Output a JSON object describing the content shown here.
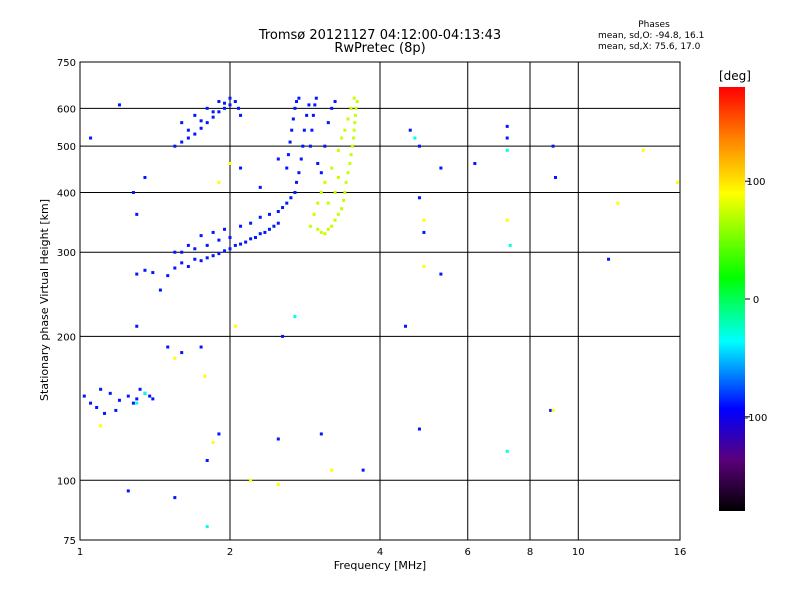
{
  "chart_data": {
    "type": "scatter",
    "title": "Tromsø 20121127 04:12:00-04:13:43",
    "subtitle": "RwPretec (8p)",
    "xlabel": "Frequency [MHz]",
    "ylabel": "Stationary phase Virtual Height [km]",
    "x_scale": "log",
    "y_scale": "log",
    "xlim": [
      1,
      16
    ],
    "ylim": [
      75,
      750
    ],
    "x_ticks": [
      1,
      2,
      4,
      6,
      8,
      10,
      16
    ],
    "x_tick_labels": [
      "1",
      "2",
      "4",
      "6",
      "8",
      "10",
      "16"
    ],
    "y_ticks": [
      75,
      100,
      200,
      300,
      400,
      500,
      600,
      750
    ],
    "y_tick_labels": [
      "75",
      "100",
      "200",
      "300",
      "400",
      "500",
      "600",
      "750"
    ],
    "grid": true,
    "stats": {
      "title": "Phases",
      "line1": "mean, sd,O: -94.8, 16.1",
      "line2": "mean, sd,X:  75.6, 17.0"
    },
    "colorbar": {
      "label": "[deg]",
      "range": [
        -180,
        180
      ],
      "ticks": [
        100,
        0,
        -100
      ],
      "tick_labels": [
        "100",
        "0",
        "-100"
      ],
      "colormap": "rainbow-black-blue-cyan-green-yellow-red"
    },
    "traces": [
      {
        "phase": -95,
        "points": [
          [
            1.02,
            150
          ],
          [
            1.05,
            145
          ],
          [
            1.08,
            142
          ],
          [
            1.1,
            155
          ],
          [
            1.15,
            152
          ],
          [
            1.2,
            147
          ],
          [
            1.25,
            150
          ],
          [
            1.3,
            148
          ],
          [
            1.35,
            152
          ],
          [
            1.12,
            138
          ],
          [
            1.18,
            140
          ],
          [
            1.28,
            145
          ],
          [
            1.32,
            155
          ],
          [
            1.38,
            150
          ],
          [
            1.4,
            148
          ]
        ]
      },
      {
        "phase": -95,
        "points": [
          [
            1.3,
            270
          ],
          [
            1.35,
            275
          ],
          [
            1.4,
            272
          ],
          [
            1.5,
            268
          ],
          [
            1.55,
            278
          ],
          [
            1.6,
            285
          ],
          [
            1.65,
            280
          ],
          [
            1.7,
            290
          ],
          [
            1.75,
            288
          ],
          [
            1.8,
            292
          ],
          [
            1.85,
            295
          ],
          [
            1.9,
            298
          ],
          [
            1.95,
            302
          ],
          [
            2.0,
            305
          ],
          [
            2.05,
            310
          ],
          [
            2.1,
            312
          ],
          [
            2.15,
            315
          ],
          [
            2.2,
            320
          ],
          [
            2.25,
            322
          ],
          [
            2.3,
            328
          ],
          [
            2.35,
            330
          ],
          [
            2.4,
            335
          ],
          [
            2.45,
            340
          ],
          [
            2.5,
            345
          ],
          [
            1.6,
            300
          ],
          [
            1.7,
            305
          ],
          [
            1.8,
            310
          ],
          [
            1.9,
            318
          ],
          [
            2.0,
            322
          ],
          [
            1.55,
            300
          ],
          [
            1.65,
            310
          ],
          [
            1.75,
            325
          ],
          [
            1.85,
            330
          ],
          [
            1.95,
            335
          ],
          [
            2.1,
            340
          ],
          [
            2.2,
            345
          ],
          [
            2.3,
            355
          ],
          [
            2.4,
            360
          ],
          [
            2.5,
            365
          ],
          [
            2.55,
            372
          ],
          [
            2.6,
            380
          ],
          [
            2.65,
            390
          ],
          [
            2.7,
            400
          ],
          [
            2.72,
            420
          ],
          [
            2.75,
            440
          ],
          [
            2.78,
            470
          ],
          [
            2.8,
            500
          ],
          [
            2.82,
            540
          ],
          [
            2.85,
            580
          ],
          [
            2.88,
            610
          ]
        ]
      },
      {
        "phase": -95,
        "points": [
          [
            1.55,
            500
          ],
          [
            1.6,
            510
          ],
          [
            1.65,
            520
          ],
          [
            1.7,
            530
          ],
          [
            1.75,
            545
          ],
          [
            1.8,
            560
          ],
          [
            1.85,
            575
          ],
          [
            1.9,
            590
          ],
          [
            1.95,
            600
          ],
          [
            2.0,
            610
          ],
          [
            2.05,
            620
          ],
          [
            2.08,
            600
          ],
          [
            2.1,
            580
          ],
          [
            1.6,
            560
          ],
          [
            1.7,
            580
          ],
          [
            1.8,
            600
          ],
          [
            1.9,
            620
          ],
          [
            2.0,
            630
          ],
          [
            1.65,
            540
          ],
          [
            1.75,
            565
          ],
          [
            1.85,
            590
          ],
          [
            1.95,
            615
          ]
        ]
      },
      {
        "phase": -95,
        "points": [
          [
            2.6,
            450
          ],
          [
            2.62,
            480
          ],
          [
            2.64,
            510
          ],
          [
            2.66,
            540
          ],
          [
            2.68,
            570
          ],
          [
            2.7,
            600
          ],
          [
            2.72,
            620
          ],
          [
            2.75,
            630
          ],
          [
            2.9,
            500
          ],
          [
            2.92,
            540
          ],
          [
            2.94,
            580
          ],
          [
            2.96,
            610
          ],
          [
            2.98,
            630
          ],
          [
            3.0,
            460
          ],
          [
            3.05,
            440
          ],
          [
            3.1,
            500
          ],
          [
            3.15,
            560
          ],
          [
            3.2,
            600
          ],
          [
            3.25,
            620
          ]
        ]
      },
      {
        "phase": 70,
        "points": [
          [
            2.9,
            340
          ],
          [
            3.0,
            335
          ],
          [
            3.05,
            330
          ],
          [
            3.1,
            328
          ],
          [
            3.15,
            335
          ],
          [
            3.2,
            340
          ],
          [
            3.25,
            350
          ],
          [
            3.3,
            360
          ],
          [
            3.35,
            370
          ],
          [
            3.38,
            385
          ],
          [
            3.4,
            400
          ],
          [
            3.42,
            420
          ],
          [
            3.45,
            440
          ],
          [
            3.48,
            460
          ],
          [
            3.5,
            480
          ],
          [
            3.52,
            500
          ],
          [
            3.54,
            520
          ],
          [
            3.55,
            540
          ],
          [
            3.56,
            560
          ],
          [
            3.57,
            580
          ],
          [
            3.58,
            600
          ],
          [
            3.6,
            620
          ],
          [
            3.55,
            630
          ],
          [
            3.5,
            600
          ],
          [
            3.45,
            570
          ],
          [
            3.4,
            540
          ],
          [
            3.35,
            520
          ],
          [
            3.3,
            490
          ],
          [
            3.2,
            450
          ],
          [
            3.1,
            420
          ],
          [
            3.05,
            400
          ],
          [
            3.0,
            380
          ],
          [
            2.95,
            360
          ],
          [
            3.15,
            380
          ],
          [
            3.25,
            400
          ],
          [
            3.3,
            430
          ]
        ]
      },
      {
        "phase": -95,
        "points": [
          [
            1.05,
            520
          ],
          [
            1.2,
            610
          ],
          [
            1.28,
            400
          ],
          [
            1.3,
            360
          ],
          [
            1.35,
            430
          ],
          [
            1.45,
            250
          ],
          [
            1.5,
            190
          ],
          [
            1.6,
            185
          ],
          [
            1.75,
            190
          ],
          [
            1.8,
            110
          ],
          [
            1.9,
            125
          ],
          [
            2.1,
            450
          ],
          [
            2.3,
            410
          ],
          [
            2.5,
            470
          ],
          [
            2.55,
            200
          ],
          [
            3.05,
            125
          ],
          [
            4.6,
            540
          ],
          [
            4.8,
            500
          ],
          [
            4.8,
            390
          ],
          [
            4.9,
            330
          ],
          [
            5.3,
            270
          ],
          [
            5.3,
            450
          ],
          [
            6.2,
            460
          ],
          [
            7.2,
            550
          ],
          [
            7.2,
            520
          ],
          [
            8.8,
            140
          ],
          [
            8.9,
            500
          ],
          [
            9.0,
            430
          ],
          [
            11.5,
            290
          ],
          [
            4.5,
            210
          ],
          [
            1.3,
            210
          ],
          [
            1.25,
            95
          ],
          [
            1.55,
            92
          ],
          [
            2.5,
            122
          ],
          [
            4.8,
            128
          ],
          [
            3.7,
            105
          ]
        ]
      },
      {
        "phase": 90,
        "points": [
          [
            1.1,
            130
          ],
          [
            1.55,
            180
          ],
          [
            1.78,
            165
          ],
          [
            2.05,
            210
          ],
          [
            2.2,
            100
          ],
          [
            2.5,
            98
          ],
          [
            3.2,
            105
          ],
          [
            4.9,
            280
          ],
          [
            4.9,
            350
          ],
          [
            7.2,
            350
          ],
          [
            12,
            380
          ],
          [
            13.5,
            490
          ],
          [
            15.8,
            420
          ],
          [
            8.9,
            140
          ],
          [
            1.85,
            120
          ],
          [
            1.9,
            420
          ],
          [
            2.0,
            460
          ]
        ]
      },
      {
        "phase": -40,
        "points": [
          [
            1.3,
            145
          ],
          [
            1.35,
            152
          ],
          [
            2.7,
            220
          ],
          [
            4.7,
            520
          ],
          [
            7.2,
            490
          ],
          [
            7.3,
            310
          ],
          [
            7.2,
            115
          ],
          [
            1.8,
            80
          ]
        ]
      }
    ]
  }
}
